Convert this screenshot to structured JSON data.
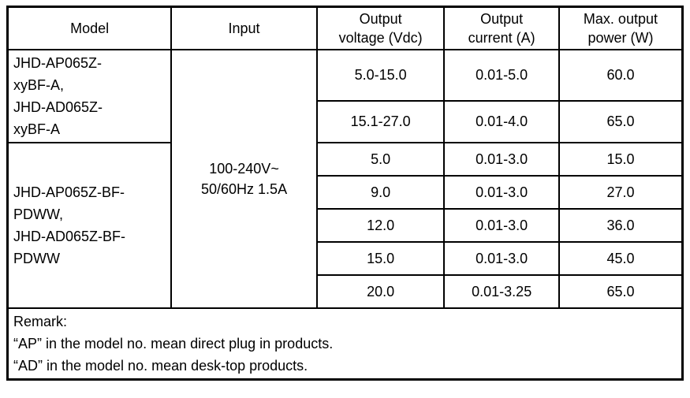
{
  "table": {
    "headers": {
      "model": "Model",
      "input": "Input",
      "output_voltage": "Output\nvoltage (Vdc)",
      "output_current": "Output\ncurrent (A)",
      "max_output_power": "Max. output\npower (W)"
    },
    "model_groups": [
      "JHD-AP065Z-\nxyBF-A,\nJHD-AD065Z-\nxyBF-A",
      "JHD-AP065Z-BF-\nPDWW,\nJHD-AD065Z-BF-\nPDWW"
    ],
    "input_value": "100-240V~\n50/60Hz 1.5A",
    "rows": [
      {
        "voltage": "5.0-15.0",
        "current": "0.01-5.0",
        "power": "60.0"
      },
      {
        "voltage": "15.1-27.0",
        "current": "0.01-4.0",
        "power": "65.0"
      },
      {
        "voltage": "5.0",
        "current": "0.01-3.0",
        "power": "15.0"
      },
      {
        "voltage": "9.0",
        "current": "0.01-3.0",
        "power": "27.0"
      },
      {
        "voltage": "12.0",
        "current": "0.01-3.0",
        "power": "36.0"
      },
      {
        "voltage": "15.0",
        "current": "0.01-3.0",
        "power": "45.0"
      },
      {
        "voltage": "20.0",
        "current": "0.01-3.25",
        "power": "65.0"
      }
    ],
    "remark": {
      "title": "Remark:",
      "line1": "“AP” in the model no. mean direct plug in products.",
      "line2": "“AD” in the model no. mean desk-top products."
    }
  }
}
